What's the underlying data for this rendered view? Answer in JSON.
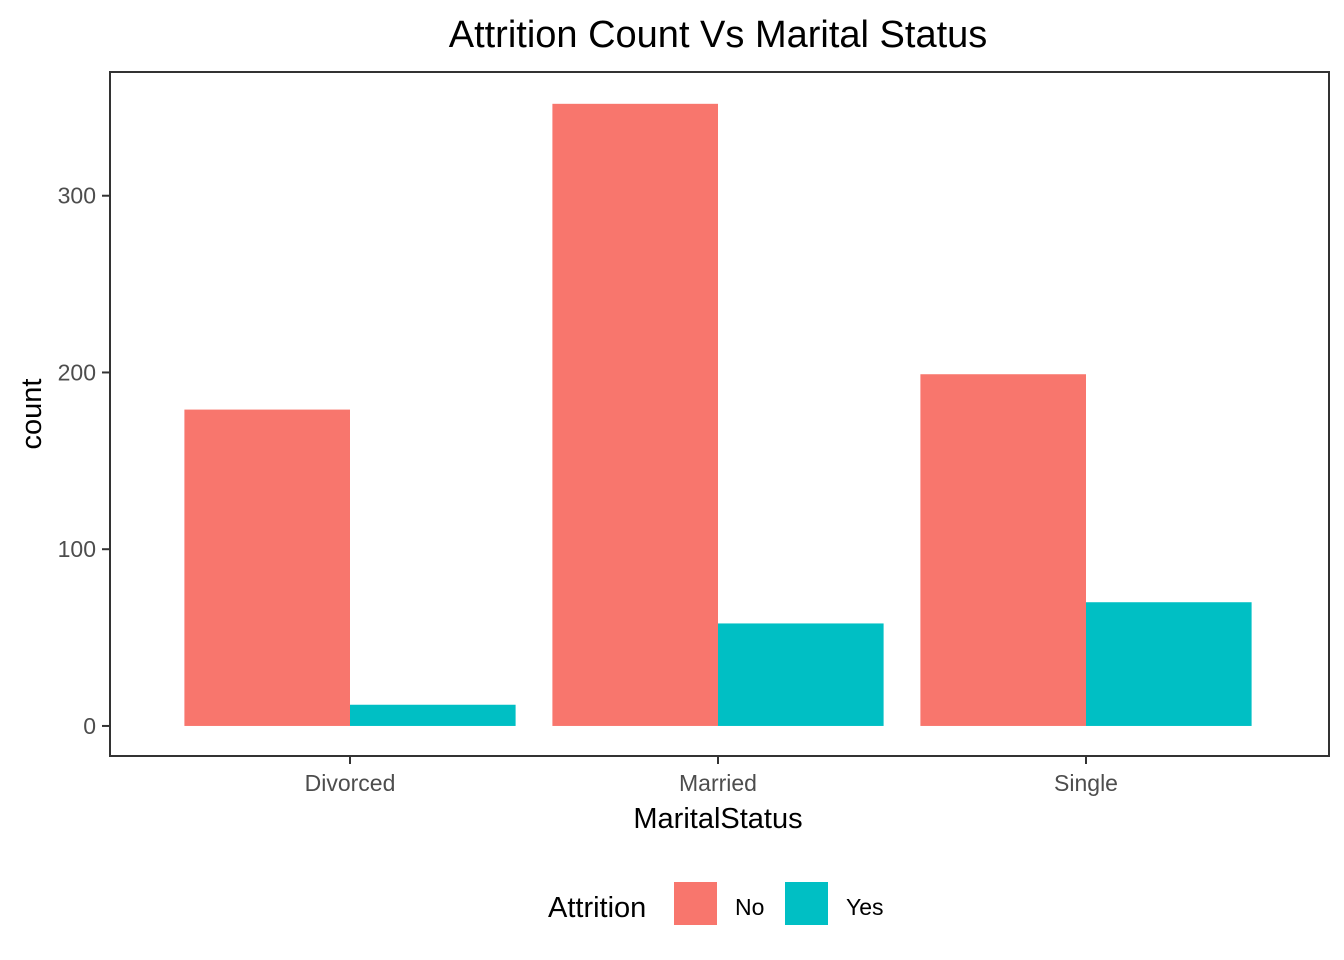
{
  "chart_data": {
    "type": "bar",
    "title": "Attrition Count Vs Marital Status",
    "xlabel": "MaritalStatus",
    "ylabel": "count",
    "categories": [
      "Divorced",
      "Married",
      "Single"
    ],
    "series": [
      {
        "name": "No",
        "color": "#F8766D",
        "values": [
          179,
          352,
          199
        ]
      },
      {
        "name": "Yes",
        "color": "#00BFC4",
        "values": [
          12,
          58,
          70
        ]
      }
    ],
    "ylim": [
      -17,
      370
    ],
    "yticks": [
      0,
      100,
      200,
      300
    ],
    "ytick_labels": [
      "0",
      "100",
      "200",
      "300"
    ],
    "grid": false,
    "legend": {
      "title": "Attrition",
      "position": "bottom"
    }
  }
}
